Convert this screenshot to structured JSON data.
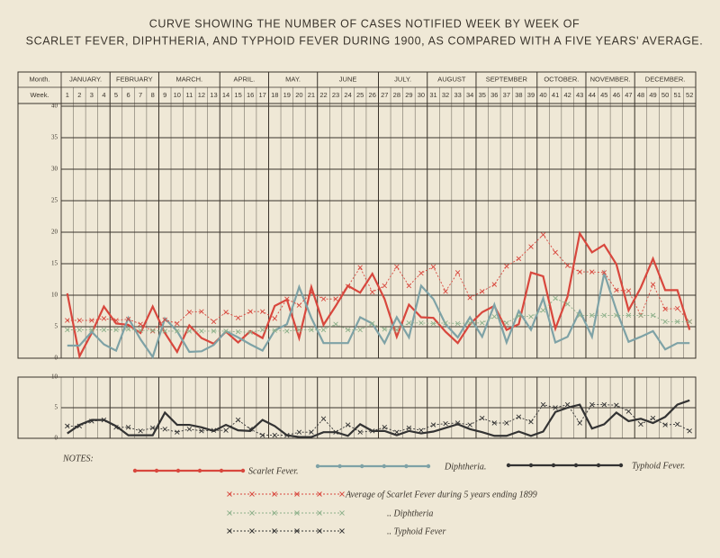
{
  "title_lines": [
    "CURVE SHOWING THE NUMBER OF CASES NOTIFIED WEEK BY WEEK OF",
    "SCARLET FEVER, DIPHTHERIA, AND TYPHOID FEVER DURING 1900, AS COMPARED WITH A FIVE YEARS' AVERAGE."
  ],
  "notes_label": "NOTES:",
  "chart_data": [
    {
      "type": "line",
      "month_row_label": "Month.",
      "week_row_label": "Week.",
      "months": [
        {
          "label": "JANUARY.",
          "weeks": 4
        },
        {
          "label": "FEBRUARY",
          "weeks": 4
        },
        {
          "label": "MARCH.",
          "weeks": 5
        },
        {
          "label": "APRIL.",
          "weeks": 4
        },
        {
          "label": "MAY.",
          "weeks": 4
        },
        {
          "label": "JUNE",
          "weeks": 5
        },
        {
          "label": "JULY.",
          "weeks": 4
        },
        {
          "label": "AUGUST",
          "weeks": 4
        },
        {
          "label": "SEPTEMBER",
          "weeks": 5
        },
        {
          "label": "OCTOBER.",
          "weeks": 4
        },
        {
          "label": "NOVEMBER.",
          "weeks": 4
        },
        {
          "label": "DECEMBER.",
          "weeks": 5
        }
      ],
      "categories": [
        "1",
        "2",
        "3",
        "4",
        "5",
        "6",
        "7",
        "8",
        "9",
        "10",
        "11",
        "12",
        "13",
        "14",
        "15",
        "16",
        "17",
        "18",
        "19",
        "20",
        "21",
        "22",
        "23",
        "24",
        "25",
        "26",
        "27",
        "28",
        "29",
        "30",
        "31",
        "32",
        "33",
        "34",
        "35",
        "36",
        "37",
        "38",
        "39",
        "40",
        "41",
        "42",
        "43",
        "44",
        "45",
        "46",
        "47",
        "48",
        "49",
        "50",
        "51",
        "52"
      ],
      "ylim": [
        0,
        40
      ],
      "yticks": [
        0,
        5,
        10,
        15,
        20,
        25,
        30,
        35,
        40
      ],
      "grid": true,
      "series": [
        {
          "name": "Scarlet Fever.",
          "color": "#d8473d",
          "dashed": false,
          "values": [
            10.3,
            0.3,
            4,
            8.2,
            5.5,
            5.3,
            4,
            8.2,
            4,
            1,
            5.2,
            3.2,
            2.3,
            4.2,
            2.5,
            4.3,
            3.2,
            8.3,
            9.3,
            3.2,
            11.3,
            5.3,
            8.3,
            11.5,
            10.4,
            13.4,
            9.4,
            3.4,
            8.5,
            6.5,
            6.4,
            4.2,
            2.4,
            5.4,
            7.3,
            8.3,
            4.5,
            5.4,
            13.6,
            13,
            4.7,
            9.8,
            19.8,
            16.8,
            18,
            14.9,
            7.6,
            11.2,
            15.8,
            10.8,
            10.8,
            4.5
          ]
        },
        {
          "name": "Diphtheria.",
          "color": "#7ea2a6",
          "dashed": false,
          "values": [
            2,
            2,
            4.2,
            2.2,
            1.2,
            6.4,
            3,
            0.2,
            6.3,
            4.3,
            1,
            1.1,
            2.1,
            4.3,
            3.3,
            2.2,
            1.2,
            4.4,
            5.4,
            11.3,
            6.4,
            2.4,
            2.4,
            2.4,
            6.5,
            5.5,
            2.4,
            6.5,
            3.3,
            11.5,
            9.4,
            5.4,
            3.3,
            6.5,
            3.4,
            8.5,
            2.5,
            7.5,
            4.5,
            9.5,
            2.5,
            3.4,
            7.5,
            3.4,
            13.5,
            7.6,
            2.6,
            3.4,
            4.3,
            1.4,
            2.4,
            2.4
          ]
        },
        {
          "name": "Average of Scarlet Fever during 5 years ending 1899",
          "color": "#d8473d",
          "dashed": true,
          "values": [
            6,
            6,
            6,
            6.3,
            6,
            6.2,
            5.4,
            4.3,
            6.1,
            5.5,
            7.3,
            7.4,
            5.8,
            7.3,
            6.4,
            7.4,
            7.4,
            6.3,
            9.4,
            8.4,
            10.4,
            9.4,
            9.4,
            11.4,
            14.4,
            10.5,
            11.5,
            14.5,
            11.5,
            13.5,
            14.5,
            10.6,
            13.6,
            9.6,
            10.6,
            11.7,
            14.6,
            15.8,
            17.7,
            19.6,
            16.8,
            14.7,
            13.7,
            13.7,
            13.6,
            10.8,
            10.7,
            6.8,
            11.7,
            7.8,
            7.9,
            5.8
          ]
        },
        {
          "name": ".. Diphtheria",
          "color": "#8db08a",
          "dashed": true,
          "values": [
            4.5,
            4.5,
            4.5,
            4.5,
            4.5,
            4.6,
            4.4,
            4.4,
            4.3,
            4.3,
            4.3,
            4.3,
            4.3,
            4.3,
            4.2,
            4.1,
            4.5,
            4.4,
            4.3,
            4.5,
            4.5,
            4.5,
            5.4,
            4.5,
            4.5,
            5.5,
            4.6,
            4.5,
            5.6,
            5.6,
            5.5,
            5.6,
            5.5,
            5.6,
            5.6,
            6.6,
            5.6,
            6.7,
            6.6,
            7.6,
            9.5,
            8.6,
            6.8,
            6.8,
            6.8,
            6.8,
            6.8,
            6.8,
            6.8,
            5.8,
            5.8,
            5.8
          ]
        }
      ]
    },
    {
      "type": "line",
      "ylim": [
        0,
        10
      ],
      "yticks": [
        0,
        5,
        10
      ],
      "grid": true,
      "series": [
        {
          "name": "Typhoid Fever.",
          "color": "#333333",
          "dashed": false,
          "values": [
            0.8,
            2.2,
            3,
            3,
            2,
            0.5,
            0.5,
            0.5,
            4.2,
            2.2,
            2.2,
            1.8,
            1.2,
            2.2,
            1.3,
            1.2,
            3,
            2,
            0.5,
            0.2,
            0.2,
            1,
            1,
            0.4,
            2.3,
            1.2,
            1.2,
            0.5,
            1.2,
            0.8,
            1.1,
            1.7,
            2.3,
            1.5,
            1,
            0.4,
            0.4,
            1.1,
            0.4,
            1.1,
            4.3,
            5,
            5.5,
            1.6,
            2.3,
            4.2,
            2.8,
            3.2,
            2.5,
            3.5,
            5.5,
            6.2
          ]
        },
        {
          "name": ".. Typhoid Fever",
          "color": "#333333",
          "dashed": true,
          "values": [
            2,
            2,
            2.8,
            3,
            1.8,
            1.8,
            1.2,
            1.7,
            1.5,
            1,
            1.5,
            1.2,
            1.3,
            1.3,
            3,
            1.5,
            0.5,
            0.5,
            0.5,
            1,
            1,
            3.2,
            1,
            2.2,
            1,
            1.2,
            1.8,
            1,
            1.7,
            1.3,
            2.2,
            2.4,
            2.5,
            2.2,
            3.3,
            2.5,
            2.5,
            3.5,
            2.7,
            5.5,
            5,
            5.5,
            2.5,
            5.5,
            5.5,
            5.4,
            4.4,
            2.3,
            3.3,
            2.2,
            2.3,
            1.2
          ]
        }
      ]
    }
  ]
}
